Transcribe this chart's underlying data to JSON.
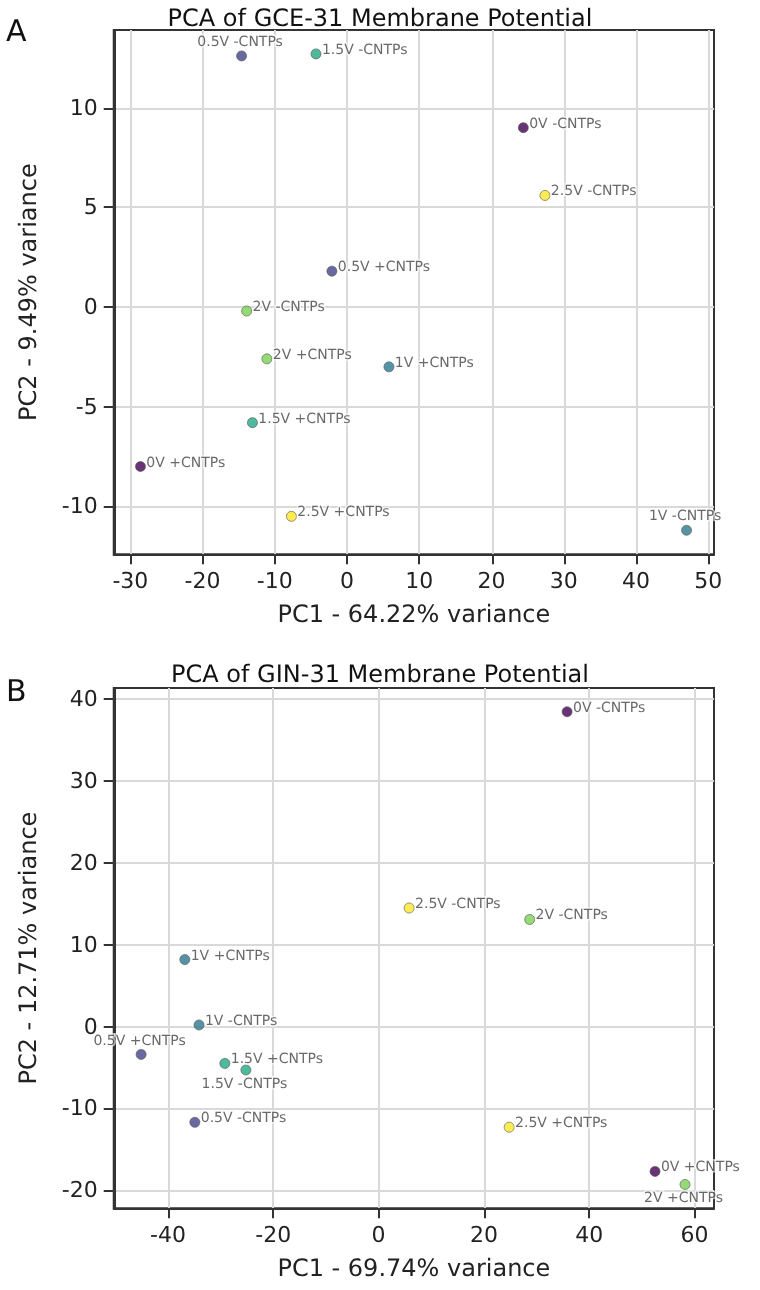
{
  "chart_data": [
    {
      "type": "scatter",
      "title": "PCA of GCE-31 Membrane Potential",
      "xlabel": "PC1 - 64.22% variance",
      "ylabel": "PC2 - 9.49% variance",
      "annotations": [
        "A"
      ],
      "xlim": [
        -32.3,
        50.8
      ],
      "xticks": [
        -30,
        -20,
        -10,
        0,
        10,
        20,
        30,
        40,
        50
      ],
      "ylim": [
        -12.4,
        13.9
      ],
      "yticks": [
        -10,
        -5,
        0,
        5,
        10
      ],
      "grid": true,
      "marker": "circle",
      "series": [
        {
          "name": "0.5V -CNTPs",
          "color": "#414487",
          "x": [
            -14.6
          ],
          "values": [
            12.6
          ]
        },
        {
          "name": "1.5V -CNTPs",
          "color": "#22a884",
          "x": [
            -4.3
          ],
          "values": [
            12.7
          ]
        },
        {
          "name": "0V -CNTPs",
          "color": "#440154",
          "x": [
            24.4
          ],
          "values": [
            9.0
          ]
        },
        {
          "name": "2.5V -CNTPs",
          "color": "#fde725",
          "x": [
            27.4
          ],
          "values": [
            5.6
          ]
        },
        {
          "name": "0.5V +CNTPs",
          "color": "#414487",
          "x": [
            -2.1
          ],
          "values": [
            1.8
          ]
        },
        {
          "name": "2V -CNTPs",
          "color": "#7ad151",
          "x": [
            -13.9
          ],
          "values": [
            -0.2
          ]
        },
        {
          "name": "2V +CNTPs",
          "color": "#7ad151",
          "x": [
            -11.1
          ],
          "values": [
            -2.6
          ]
        },
        {
          "name": "1V +CNTPs",
          "color": "#2a788e",
          "x": [
            5.8
          ],
          "values": [
            -3.0
          ]
        },
        {
          "name": "1.5V +CNTPs",
          "color": "#22a884",
          "x": [
            -13.1
          ],
          "values": [
            -5.8
          ]
        },
        {
          "name": "0V +CNTPs",
          "color": "#440154",
          "x": [
            -28.6
          ],
          "values": [
            -8.0
          ]
        },
        {
          "name": "2.5V +CNTPs",
          "color": "#fde725",
          "x": [
            -7.7
          ],
          "values": [
            -10.5
          ]
        },
        {
          "name": "1V -CNTPs",
          "color": "#2a788e",
          "x": [
            47.0
          ],
          "values": [
            -11.2
          ]
        }
      ]
    },
    {
      "type": "scatter",
      "title": "PCA of GIN-31 Membrane Potential",
      "xlabel": "PC1 - 69.74% variance",
      "ylabel": "PC2 - 12.71% variance",
      "annotations": [
        "B"
      ],
      "xlim": [
        -50.3,
        63.7
      ],
      "xticks": [
        -40,
        -20,
        0,
        20,
        40,
        60
      ],
      "ylim": [
        -22.2,
        41.4
      ],
      "yticks": [
        -20,
        -10,
        0,
        10,
        20,
        30,
        40
      ],
      "grid": true,
      "marker": "circle",
      "series": [
        {
          "name": "0V -CNTPs",
          "color": "#440154",
          "x": [
            35.8
          ],
          "values": [
            38.5
          ]
        },
        {
          "name": "2.5V -CNTPs",
          "color": "#fde725",
          "x": [
            5.8
          ],
          "values": [
            14.5
          ]
        },
        {
          "name": "2V -CNTPs",
          "color": "#7ad151",
          "x": [
            28.7
          ],
          "values": [
            13.1
          ]
        },
        {
          "name": "1V +CNTPs",
          "color": "#2a788e",
          "x": [
            -36.8
          ],
          "values": [
            8.2
          ]
        },
        {
          "name": "1V -CNTPs",
          "color": "#2a788e",
          "x": [
            -34.1
          ],
          "values": [
            0.2
          ]
        },
        {
          "name": "0.5V +CNTPs",
          "color": "#414487",
          "x": [
            -45.1
          ],
          "values": [
            -3.4
          ]
        },
        {
          "name": "1.5V +CNTPs",
          "color": "#22a884",
          "x": [
            -29.2
          ],
          "values": [
            -4.5
          ]
        },
        {
          "name": "1.5V -CNTPs",
          "color": "#22a884",
          "x": [
            -25.2
          ],
          "values": [
            -5.3
          ]
        },
        {
          "name": "0.5V -CNTPs",
          "color": "#414487",
          "x": [
            -34.9
          ],
          "values": [
            -11.7
          ]
        },
        {
          "name": "2.5V +CNTPs",
          "color": "#fde725",
          "x": [
            24.8
          ],
          "values": [
            -12.3
          ]
        },
        {
          "name": "0V +CNTPs",
          "color": "#440154",
          "x": [
            52.5
          ],
          "values": [
            -17.7
          ]
        },
        {
          "name": "2V +CNTPs",
          "color": "#7ad151",
          "x": [
            58.2
          ],
          "values": [
            -19.3
          ]
        }
      ]
    }
  ]
}
